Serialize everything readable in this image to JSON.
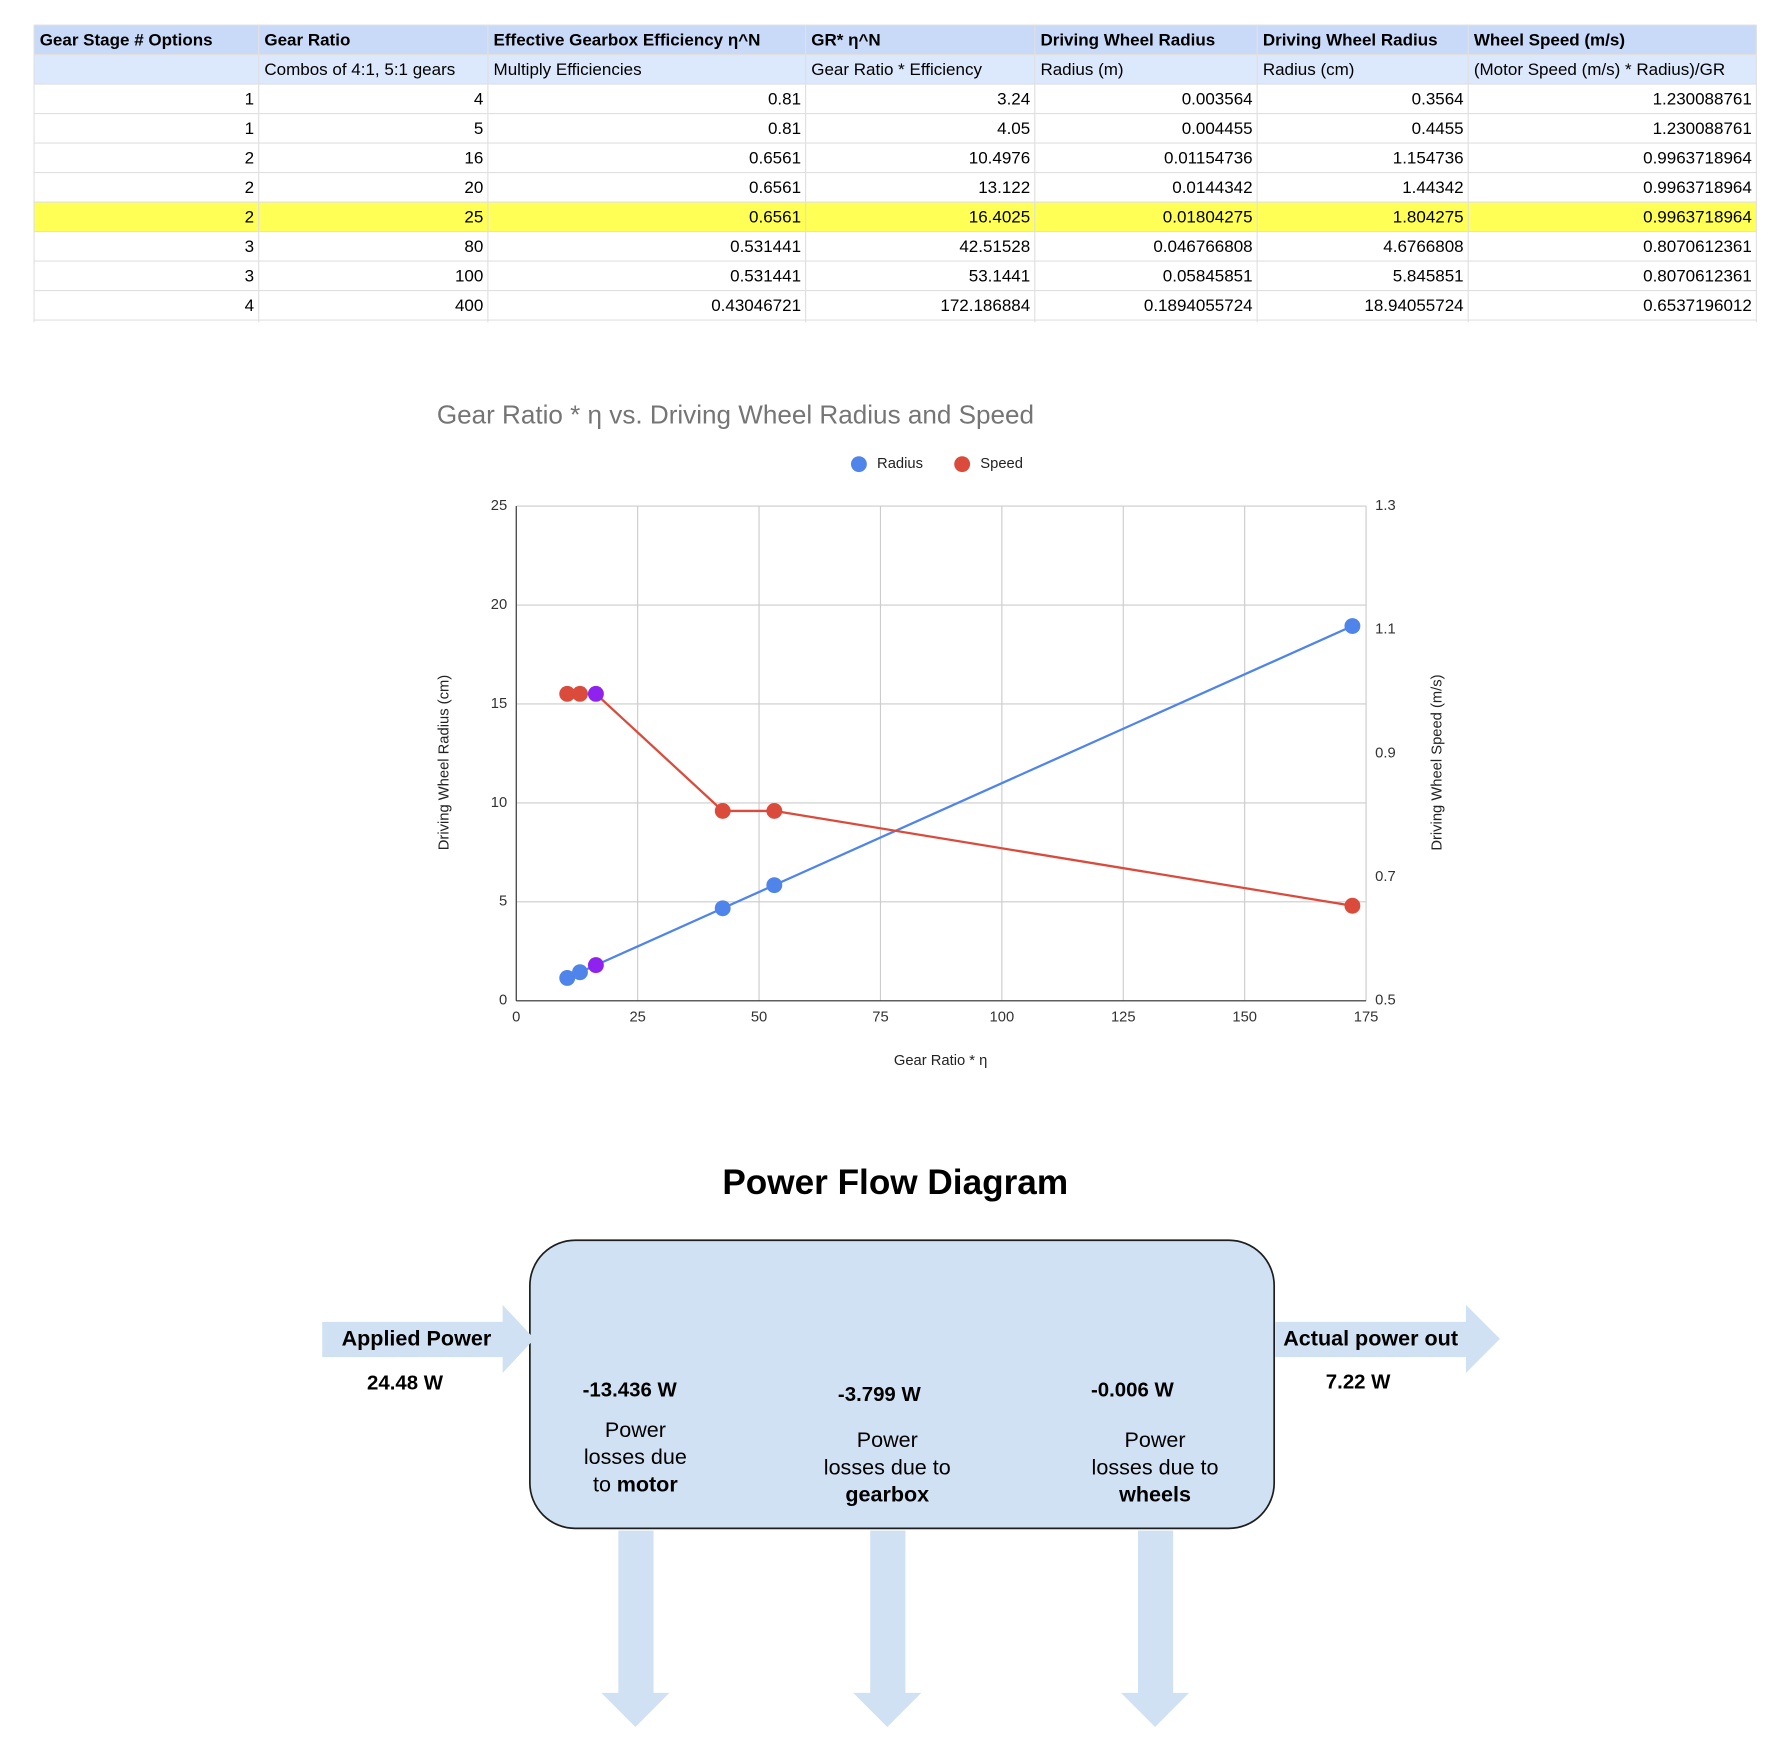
{
  "table": {
    "header": [
      "Gear Stage # Options",
      "Gear Ratio",
      "Effective Gearbox Efficiency η^N",
      "GR* η^N",
      "Driving Wheel Radius",
      "Driving Wheel Radius",
      "Wheel Speed (m/s)"
    ],
    "subheader": [
      null,
      "Combos of 4:1, 5:1 gears",
      "Multiply Efficiencies",
      "Gear Ratio * Efficiency",
      "Radius (m)",
      "Radius (cm)",
      "(Motor Speed (m/s) * Radius)/GR"
    ],
    "rows": [
      [
        1,
        4,
        0.81,
        3.24,
        0.003564,
        0.3564,
        1.230088761
      ],
      [
        1,
        5,
        0.81,
        4.05,
        0.004455,
        0.4455,
        1.230088761
      ],
      [
        2,
        16,
        0.6561,
        10.4976,
        0.01154736,
        1.154736,
        0.9963718964
      ],
      [
        2,
        20,
        0.6561,
        13.122,
        0.0144342,
        1.44342,
        0.9963718964
      ],
      [
        2,
        25,
        0.6561,
        16.4025,
        0.01804275,
        1.804275,
        0.9963718964
      ],
      [
        3,
        80,
        0.531441,
        42.51528,
        0.046766808,
        4.6766808,
        0.8070612361
      ],
      [
        3,
        100,
        0.531441,
        53.1441,
        0.05845851,
        5.845851,
        0.8070612361
      ],
      [
        4,
        400,
        0.43046721,
        172.186884,
        0.1894055724,
        18.94055724,
        0.6537196012
      ]
    ],
    "highlight_row": 4,
    "highlight_color": "#ffff55"
  },
  "chart_data": {
    "type": "scatter-line",
    "title": "Gear Ratio * η vs. Driving Wheel Radius and Speed",
    "x_label": "Gear Ratio * η",
    "y_label": "Driving Wheel Radius (cm)",
    "y2_label": "Driving Wheel Speed (m/s)",
    "x": [
      10.4976,
      13.122,
      16.4025,
      42.51528,
      53.1441,
      172.186884
    ],
    "series": [
      {
        "name": "Radius",
        "color": "#4f84ea",
        "values": [
          1.154736,
          1.44342,
          1.804275,
          4.6766808,
          5.845851,
          18.94055724
        ]
      },
      {
        "name": "Speed",
        "color": "#db4b3c",
        "axis": "y2",
        "values": [
          0.9963718964,
          0.9963718964,
          0.9963718964,
          0.8070612361,
          0.8070612361,
          0.6537196012
        ]
      }
    ],
    "highlight": {
      "index": 2,
      "color": "#8f22ee"
    },
    "xlim": [
      0,
      175
    ],
    "xticks": [
      0,
      25,
      50,
      75,
      100,
      125,
      150,
      175
    ],
    "ylim": [
      0,
      25
    ],
    "yticks": [
      0,
      5,
      10,
      15,
      20,
      25
    ],
    "y2lim": [
      0.5,
      1.3
    ],
    "y2ticks": [
      0.5,
      0.7,
      0.9,
      1.1,
      1.3
    ],
    "grid": true,
    "legend": "top"
  },
  "diagram": {
    "title": "Power Flow Diagram",
    "input": {
      "label": "Applied Power",
      "value": "24.48 W"
    },
    "output": {
      "label": "Actual power out",
      "value": "7.22 W"
    },
    "losses": [
      {
        "value": "-13.436 W",
        "lines": [
          [
            {
              "text": "Power"
            }
          ],
          [
            {
              "text": "losses due"
            }
          ],
          [
            {
              "text": "to"
            },
            {
              "text": "motor",
              "bold": true
            }
          ]
        ]
      },
      {
        "value": "-3.799 W",
        "lines": [
          [
            {
              "text": "Power"
            }
          ],
          [
            {
              "text": "losses due to"
            }
          ],
          [
            {
              "text": "gearbox",
              "bold": true
            }
          ]
        ]
      },
      {
        "value": "-0.006 W",
        "lines": [
          [
            {
              "text": "Power"
            }
          ],
          [
            {
              "text": "losses due to"
            }
          ],
          [
            {
              "text": "wheels",
              "bold": true
            }
          ]
        ]
      }
    ]
  }
}
